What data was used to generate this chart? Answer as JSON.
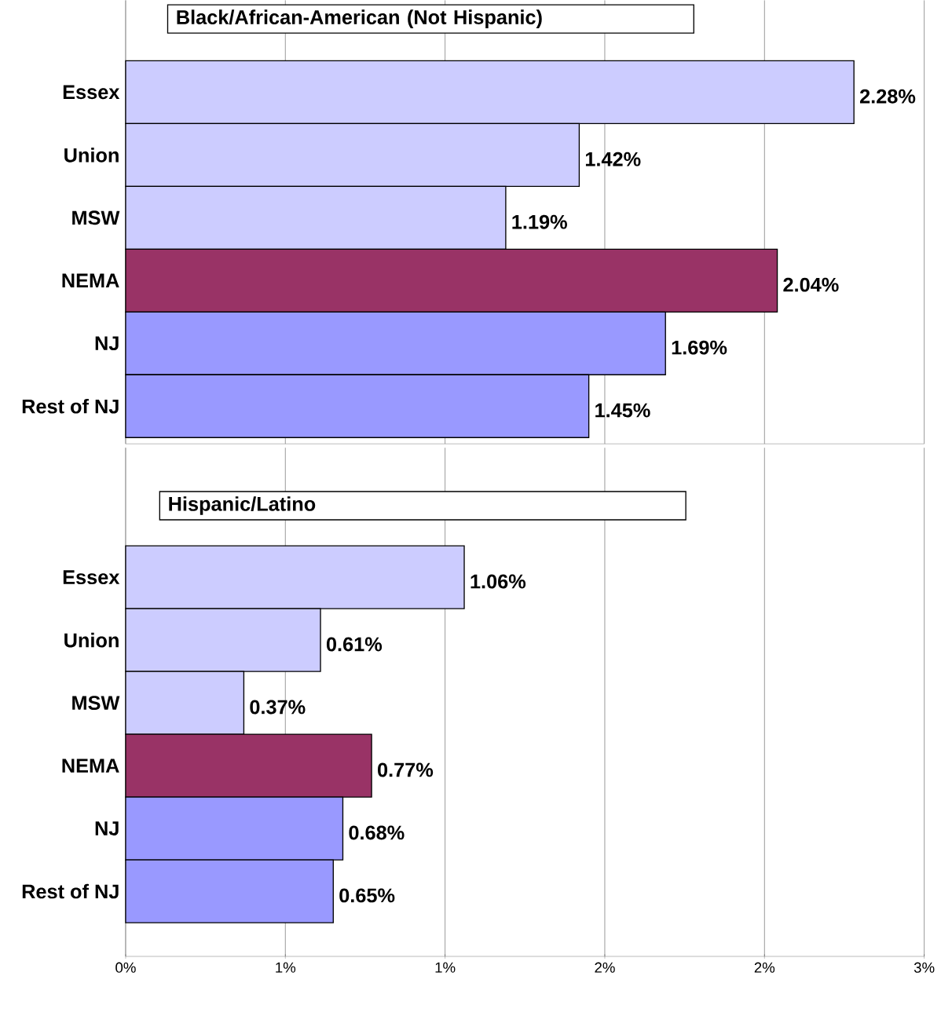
{
  "chart_data": [
    {
      "type": "bar",
      "orientation": "horizontal",
      "title": "Black/African-American (Not Hispanic)",
      "categories": [
        "Essex",
        "Union",
        "MSW",
        "NEMA",
        "NJ",
        "Rest of NJ"
      ],
      "values": [
        2.28,
        1.42,
        1.19,
        2.04,
        1.69,
        1.45
      ],
      "value_labels": [
        "2.28%",
        "1.42%",
        "1.19%",
        "2.04%",
        "1.69%",
        "1.45%"
      ],
      "colors": [
        "#ccccff",
        "#ccccff",
        "#ccccff",
        "#993366",
        "#9999ff",
        "#9999ff"
      ],
      "xlim": [
        0,
        2.5
      ],
      "xticks": [
        {
          "value": 0,
          "label": null
        },
        {
          "value": 0.5,
          "label": null
        },
        {
          "value": 1,
          "label": null
        },
        {
          "value": 1.5,
          "label": null
        },
        {
          "value": 2,
          "label": null
        },
        {
          "value": 2.5,
          "label": null
        }
      ],
      "grid": "x",
      "tick_labels": "y"
    },
    {
      "type": "bar",
      "orientation": "horizontal",
      "title": "Hispanic/Latino",
      "categories": [
        "Essex",
        "Union",
        "MSW",
        "NEMA",
        "NJ",
        "Rest of NJ"
      ],
      "values": [
        1.06,
        0.61,
        0.37,
        0.77,
        0.68,
        0.65
      ],
      "value_labels": [
        "1.06%",
        "0.61%",
        "0.37%",
        "0.77%",
        "0.68%",
        "0.65%"
      ],
      "colors": [
        "#ccccff",
        "#ccccff",
        "#ccccff",
        "#993366",
        "#9999ff",
        "#9999ff"
      ],
      "xlim": [
        0,
        2.5
      ],
      "xticks": [
        {
          "value": 0,
          "label": "0%"
        },
        {
          "value": 0.5,
          "label": "1%"
        },
        {
          "value": 1,
          "label": "1%"
        },
        {
          "value": 1.5,
          "label": "2%"
        },
        {
          "value": 2,
          "label": "2%"
        },
        {
          "value": 2.5,
          "label": "3%"
        }
      ],
      "grid": "x"
    }
  ]
}
